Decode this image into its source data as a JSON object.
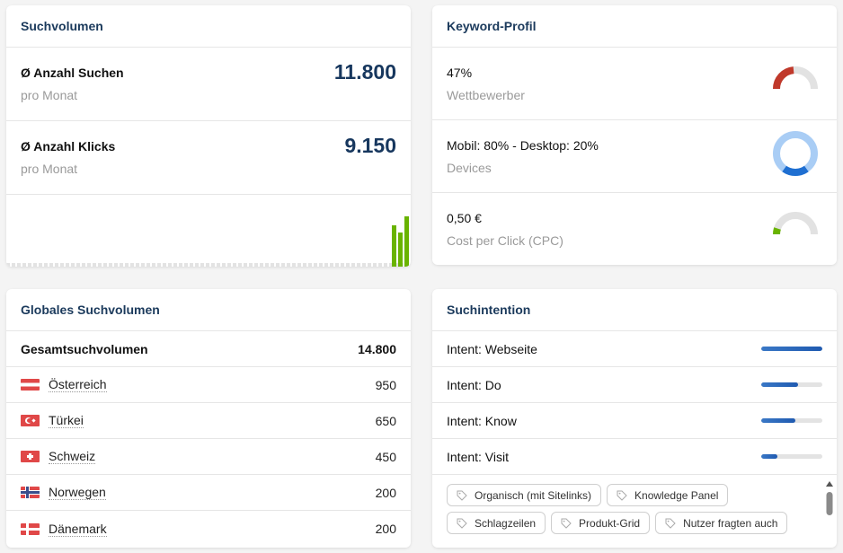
{
  "volume": {
    "title": "Suchvolumen",
    "searches": {
      "label": "Ø Anzahl Suchen",
      "sub": "pro Monat",
      "value": "11.800"
    },
    "clicks": {
      "label": "Ø Anzahl Klicks",
      "sub": "pro Monat",
      "value": "9.150"
    },
    "chart_data": {
      "type": "bar",
      "values": [
        0.83,
        0.67,
        1.0
      ],
      "color": "#69b300"
    }
  },
  "profile": {
    "title": "Keyword-Profil",
    "competition": {
      "value": "47%",
      "label": "Wettbewerber",
      "fraction": 0.47,
      "color": "#c0392b"
    },
    "devices": {
      "value": "Mobil: 80% - Desktop: 20%",
      "label": "Devices",
      "mobile": 0.8,
      "desktop": 0.2
    },
    "cpc": {
      "value": "0,50 €",
      "label": "Cost per Click (CPC)",
      "fraction": 0.1,
      "color": "#69b300"
    }
  },
  "global": {
    "title": "Globales Suchvolumen",
    "total": {
      "label": "Gesamtsuchvolumen",
      "value": "14.800"
    },
    "countries": [
      {
        "name": "Österreich",
        "value": "950",
        "flag": "at"
      },
      {
        "name": "Türkei",
        "value": "650",
        "flag": "tr"
      },
      {
        "name": "Schweiz",
        "value": "450",
        "flag": "ch"
      },
      {
        "name": "Norwegen",
        "value": "200",
        "flag": "no"
      },
      {
        "name": "Dänemark",
        "value": "200",
        "flag": "dk"
      }
    ]
  },
  "intent": {
    "title": "Suchintention",
    "items": [
      {
        "label": "Intent: Webseite",
        "fraction": 1.0
      },
      {
        "label": "Intent: Do",
        "fraction": 0.6
      },
      {
        "label": "Intent: Know",
        "fraction": 0.56
      },
      {
        "label": "Intent: Visit",
        "fraction": 0.27
      }
    ],
    "tags": [
      "Organisch (mit Sitelinks)",
      "Knowledge Panel",
      "Schlagzeilen",
      "Produkt-Grid",
      "Nutzer fragten auch"
    ]
  }
}
